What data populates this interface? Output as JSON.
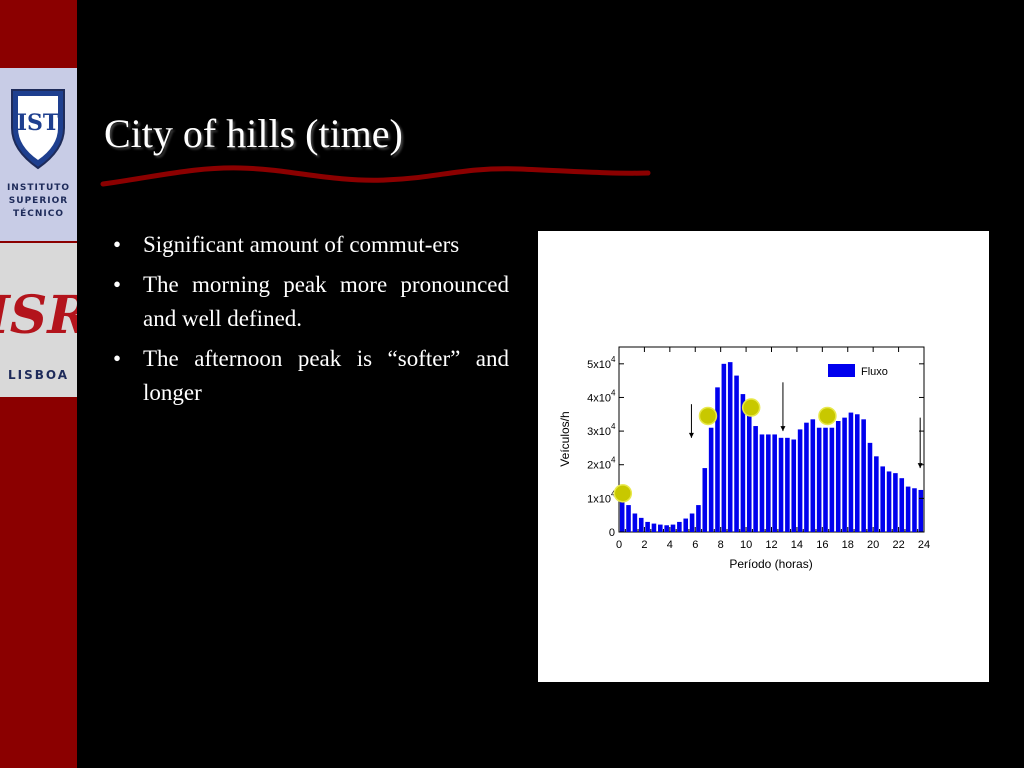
{
  "logos": {
    "ist_lines": [
      "INSTITUTO",
      "SUPERIOR",
      "TÉCNICO"
    ],
    "ist_mark": "IST",
    "isr_mark": "ISR",
    "isr_caption": "LISBOA"
  },
  "slide": {
    "title": "City of hills (time)",
    "bullets": [
      "Significant amount of commut-ers",
      "The morning peak more pronounced and well defined.",
      "The afternoon peak is “softer” and longer"
    ],
    "bullet_glyph": "•"
  },
  "colors": {
    "sidebar": "#8b0000",
    "underline": "#8b0000",
    "bars": "#0000ee",
    "markers": "#c8c800"
  },
  "chart_data": {
    "type": "bar",
    "xlabel": "Período (horas)",
    "ylabel": "Veículos/h",
    "legend": "Fluxo",
    "legend_position": "top-right",
    "xlim": [
      0,
      24
    ],
    "ylim": [
      0,
      55000
    ],
    "x_ticks": [
      0,
      2,
      4,
      6,
      8,
      10,
      12,
      14,
      16,
      18,
      20,
      22,
      24
    ],
    "y_ticks": [
      {
        "value": 0,
        "label": "0",
        "exp": ""
      },
      {
        "value": 10000,
        "label": "1x10",
        "exp": "4"
      },
      {
        "value": 20000,
        "label": "2x10",
        "exp": "4"
      },
      {
        "value": 30000,
        "label": "3x10",
        "exp": "4"
      },
      {
        "value": 40000,
        "label": "4x10",
        "exp": "4"
      },
      {
        "value": 50000,
        "label": "5x10",
        "exp": "4"
      }
    ],
    "bar_width_hours": 0.36,
    "x": [
      0.25,
      0.75,
      1.25,
      1.75,
      2.25,
      2.75,
      3.25,
      3.75,
      4.25,
      4.75,
      5.25,
      5.75,
      6.25,
      6.75,
      7.25,
      7.75,
      8.25,
      8.75,
      9.25,
      9.75,
      10.25,
      10.75,
      11.25,
      11.75,
      12.25,
      12.75,
      13.25,
      13.75,
      14.25,
      14.75,
      15.25,
      15.75,
      16.25,
      16.75,
      17.25,
      17.75,
      18.25,
      18.75,
      19.25,
      19.75,
      20.25,
      20.75,
      21.25,
      21.75,
      22.25,
      22.75,
      23.25,
      23.75
    ],
    "values": [
      11000,
      8000,
      5500,
      4200,
      3000,
      2500,
      2200,
      2000,
      2200,
      3000,
      4000,
      5500,
      8000,
      19000,
      31000,
      43000,
      50000,
      50500,
      46500,
      41000,
      34500,
      31500,
      29000,
      29000,
      29000,
      28000,
      28000,
      27500,
      30500,
      32500,
      33500,
      31000,
      31000,
      31000,
      33000,
      34000,
      35500,
      35000,
      33500,
      26500,
      22500,
      19500,
      18000,
      17500,
      16000,
      13500,
      13000,
      12500
    ],
    "markers": [
      {
        "x": 0.3,
        "y": 11500
      },
      {
        "x": 7.0,
        "y": 34500
      },
      {
        "x": 10.4,
        "y": 37000
      },
      {
        "x": 16.4,
        "y": 34500
      }
    ],
    "arrows": [
      {
        "x": 5.7,
        "y_from": 38000,
        "y_to": 28000
      },
      {
        "x": 12.9,
        "y_from": 44500,
        "y_to": 30000
      },
      {
        "x": 23.7,
        "y_from": 34000,
        "y_to": 19000
      }
    ]
  }
}
